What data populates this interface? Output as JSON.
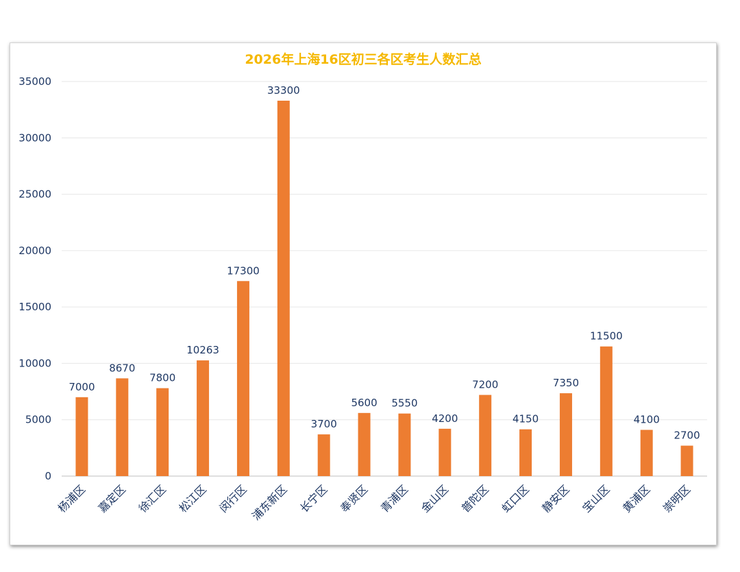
{
  "chart_data": {
    "type": "bar",
    "title": "2026年上海16区初三各区考生人数汇总",
    "categories": [
      "杨浦区",
      "嘉定区",
      "徐汇区",
      "松江区",
      "闵行区",
      "浦东新区",
      "长宁区",
      "奉贤区",
      "青浦区",
      "金山区",
      "普陀区",
      "虹口区",
      "静安区",
      "宝山区",
      "黄浦区",
      "崇明区"
    ],
    "values": [
      7000,
      8670,
      7800,
      10263,
      17300,
      33300,
      3700,
      5600,
      5550,
      4200,
      7200,
      4150,
      7350,
      11500,
      4100,
      2700
    ],
    "ylim": [
      0,
      35000
    ],
    "yticks": [
      0,
      5000,
      10000,
      15000,
      20000,
      25000,
      30000,
      35000
    ],
    "xlabel": "",
    "ylabel": "",
    "grid": true,
    "legend": "none",
    "colors": {
      "bar": "#ed7d31",
      "title": "#f5b800",
      "text": "#1f3864",
      "grid": "#e6e6e6"
    }
  }
}
